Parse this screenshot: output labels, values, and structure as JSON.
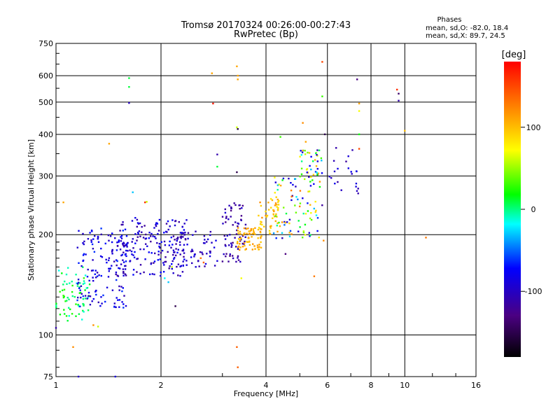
{
  "chart_data": {
    "type": "scatter",
    "title": "Tromsø 20170324 00:26:00-00:27:43",
    "subtitle": "RwPretec (Bp)",
    "xlabel": "Frequency [MHz]",
    "ylabel": "Stationary phase Virtual Height [km]",
    "x_scale": "log",
    "y_scale": "log",
    "xlim": [
      1,
      16
    ],
    "ylim": [
      75,
      750
    ],
    "x_ticks": [
      1,
      2,
      4,
      6,
      8,
      10,
      16
    ],
    "y_ticks": [
      75,
      100,
      200,
      300,
      400,
      500,
      600,
      750
    ],
    "grid": true,
    "stats": {
      "heading": "Phases",
      "line_o": "mean, sd,O: -82.0, 18.4",
      "line_x": "mean, sd,X: 89.7, 24.5"
    },
    "colorbar": {
      "label": "[deg]",
      "range": [
        -180,
        180
      ],
      "ticks": [
        100,
        0,
        -100
      ]
    },
    "clusters": [
      {
        "x": [
          1.0,
          1.25
        ],
        "y": [
          110,
          160
        ],
        "n": 70,
        "phase": [
          -20,
          30
        ]
      },
      {
        "x": [
          1.15,
          1.6
        ],
        "y": [
          120,
          210
        ],
        "n": 150,
        "phase": [
          -110,
          -60
        ]
      },
      {
        "x": [
          1.5,
          2.4
        ],
        "y": [
          150,
          225
        ],
        "n": 190,
        "phase": [
          -120,
          -70
        ]
      },
      {
        "x": [
          2.2,
          2.9
        ],
        "y": [
          160,
          205
        ],
        "n": 60,
        "phase": [
          -120,
          -80
        ]
      },
      {
        "x": [
          3.0,
          3.5
        ],
        "y": [
          165,
          250
        ],
        "n": 70,
        "phase": [
          -130,
          -90
        ]
      },
      {
        "x": [
          3.3,
          3.9
        ],
        "y": [
          180,
          210
        ],
        "n": 70,
        "phase": [
          95,
          120
        ]
      },
      {
        "x": [
          3.8,
          4.4
        ],
        "y": [
          200,
          260
        ],
        "n": 50,
        "phase": [
          80,
          120
        ]
      },
      {
        "x": [
          4.2,
          5.8
        ],
        "y": [
          195,
          300
        ],
        "n": 90,
        "phase": [
          -120,
          130
        ]
      },
      {
        "x": [
          5.0,
          5.8
        ],
        "y": [
          300,
          360
        ],
        "n": 40,
        "phase": [
          -110,
          110
        ]
      },
      {
        "x": [
          6.0,
          7.3
        ],
        "y": [
          260,
          370
        ],
        "n": 20,
        "phase": [
          -120,
          -80
        ]
      }
    ],
    "points": [
      {
        "x": 1.0,
        "y": 105,
        "phase": -110
      },
      {
        "x": 1.05,
        "y": 250,
        "phase": 110
      },
      {
        "x": 1.12,
        "y": 92,
        "phase": 120
      },
      {
        "x": 1.28,
        "y": 107,
        "phase": 120
      },
      {
        "x": 1.32,
        "y": 106,
        "phase": 60
      },
      {
        "x": 1.48,
        "y": 75,
        "phase": -90
      },
      {
        "x": 1.16,
        "y": 75,
        "phase": -100
      },
      {
        "x": 1.42,
        "y": 375,
        "phase": 110
      },
      {
        "x": 1.62,
        "y": 590,
        "phase": 10
      },
      {
        "x": 1.62,
        "y": 555,
        "phase": 10
      },
      {
        "x": 1.62,
        "y": 497,
        "phase": -100
      },
      {
        "x": 1.66,
        "y": 268,
        "phase": -30
      },
      {
        "x": 1.8,
        "y": 250,
        "phase": 160
      },
      {
        "x": 1.82,
        "y": 251,
        "phase": 60
      },
      {
        "x": 2.05,
        "y": 148,
        "phase": -20
      },
      {
        "x": 2.1,
        "y": 144,
        "phase": -30
      },
      {
        "x": 2.15,
        "y": 160,
        "phase": 60
      },
      {
        "x": 2.2,
        "y": 122,
        "phase": -150
      },
      {
        "x": 2.6,
        "y": 170,
        "phase": 130
      },
      {
        "x": 2.65,
        "y": 165,
        "phase": 140
      },
      {
        "x": 2.8,
        "y": 610,
        "phase": 110
      },
      {
        "x": 2.82,
        "y": 495,
        "phase": 170
      },
      {
        "x": 2.9,
        "y": 348,
        "phase": -110
      },
      {
        "x": 2.9,
        "y": 320,
        "phase": 10
      },
      {
        "x": 3.3,
        "y": 640,
        "phase": 110
      },
      {
        "x": 3.32,
        "y": 600,
        "phase": 110
      },
      {
        "x": 3.32,
        "y": 585,
        "phase": 110
      },
      {
        "x": 3.3,
        "y": 420,
        "phase": 60
      },
      {
        "x": 3.32,
        "y": 415,
        "phase": -160
      },
      {
        "x": 3.3,
        "y": 308,
        "phase": -150
      },
      {
        "x": 3.3,
        "y": 92,
        "phase": 140
      },
      {
        "x": 3.32,
        "y": 80,
        "phase": 140
      },
      {
        "x": 3.4,
        "y": 148,
        "phase": 70
      },
      {
        "x": 4.4,
        "y": 393,
        "phase": 30
      },
      {
        "x": 4.55,
        "y": 175,
        "phase": -130
      },
      {
        "x": 5.1,
        "y": 433,
        "phase": 120
      },
      {
        "x": 5.2,
        "y": 380,
        "phase": 110
      },
      {
        "x": 5.5,
        "y": 150,
        "phase": 130
      },
      {
        "x": 5.8,
        "y": 660,
        "phase": 150
      },
      {
        "x": 5.8,
        "y": 520,
        "phase": 30
      },
      {
        "x": 5.85,
        "y": 192,
        "phase": 120
      },
      {
        "x": 5.9,
        "y": 400,
        "phase": -150
      },
      {
        "x": 7.3,
        "y": 585,
        "phase": -130
      },
      {
        "x": 7.4,
        "y": 495,
        "phase": 110
      },
      {
        "x": 7.4,
        "y": 470,
        "phase": 70
      },
      {
        "x": 7.4,
        "y": 400,
        "phase": 20
      },
      {
        "x": 7.4,
        "y": 362,
        "phase": 150
      },
      {
        "x": 7.35,
        "y": 275,
        "phase": -110
      },
      {
        "x": 7.35,
        "y": 266,
        "phase": -110
      },
      {
        "x": 9.5,
        "y": 545,
        "phase": 160
      },
      {
        "x": 9.6,
        "y": 530,
        "phase": -140
      },
      {
        "x": 9.6,
        "y": 505,
        "phase": -110
      },
      {
        "x": 10.0,
        "y": 410,
        "phase": 100
      },
      {
        "x": 11.5,
        "y": 196,
        "phase": 130
      }
    ]
  }
}
